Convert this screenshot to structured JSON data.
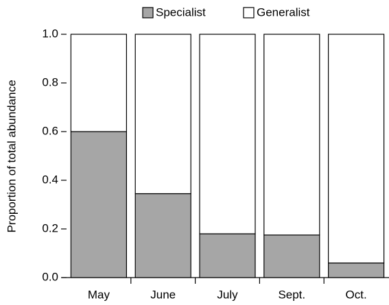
{
  "chart_data": {
    "type": "stacked_bar",
    "categories": [
      "May",
      "June",
      "July",
      "Sept.",
      "Oct."
    ],
    "series": [
      {
        "name": "Specialist",
        "color": "#a6a6a6",
        "values": [
          0.6,
          0.345,
          0.18,
          0.175,
          0.06
        ]
      },
      {
        "name": "Generalist",
        "color": "#ffffff",
        "values": [
          0.4,
          0.655,
          0.82,
          0.825,
          0.94
        ]
      }
    ],
    "y_label": "Proportion of total abundance",
    "ylim": [
      0,
      1
    ],
    "yticks": [
      {
        "value": 0,
        "label": "0.0"
      },
      0.2,
      0.4,
      0.6,
      0.8,
      {
        "value": 1,
        "label": "1.0"
      }
    ]
  }
}
